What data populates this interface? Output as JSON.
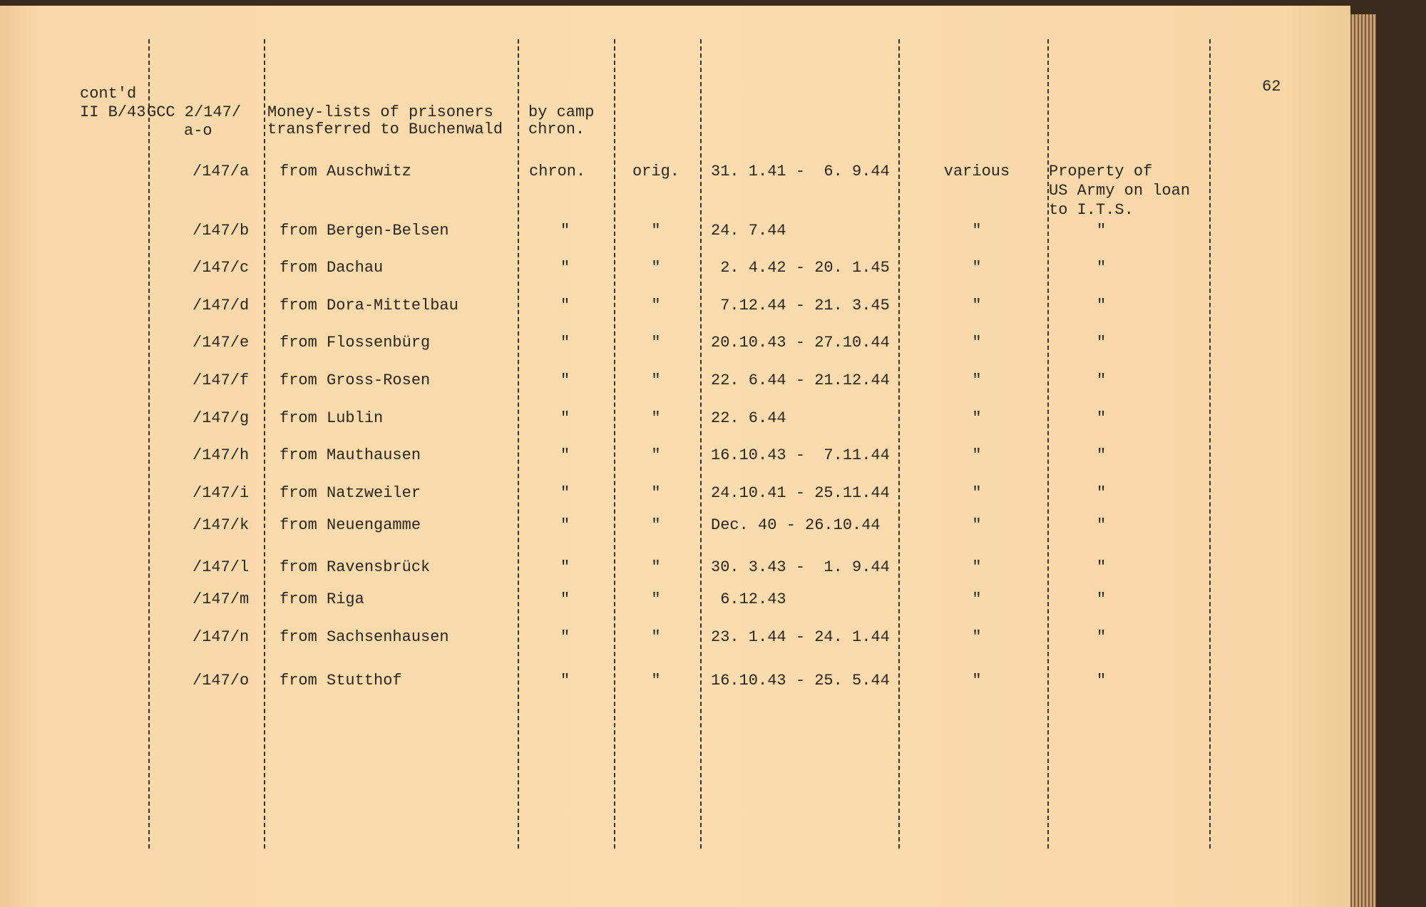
{
  "page_number": "62",
  "header": {
    "contd": "cont'd",
    "ref": "II B/43",
    "number": "GCC 2/147/",
    "number_sub": "a-o",
    "desc_line1": "Money-lists of prisoners",
    "desc_line2": "transferred to Buchenwald",
    "arr_line1": "by camp",
    "arr_line2": "chron."
  },
  "rows": [
    {
      "id": "/147/a",
      "desc": "from Auschwitz",
      "arr": "chron.",
      "orig": "orig.",
      "dates": "31. 1.41 -  6. 9.44",
      "lang": "various",
      "remark": "Property of\nUS Army on loan\nto I.T.S."
    },
    {
      "id": "/147/b",
      "desc": "from Bergen-Belsen",
      "arr": "\"",
      "orig": "\"",
      "dates": "24. 7.44",
      "lang": "\"",
      "remark": "\""
    },
    {
      "id": "/147/c",
      "desc": "from Dachau",
      "arr": "\"",
      "orig": "\"",
      "dates": " 2. 4.42 - 20. 1.45",
      "lang": "\"",
      "remark": "\""
    },
    {
      "id": "/147/d",
      "desc": "from Dora-Mittelbau",
      "arr": "\"",
      "orig": "\"",
      "dates": " 7.12.44 - 21. 3.45",
      "lang": "\"",
      "remark": "\""
    },
    {
      "id": "/147/e",
      "desc": "from Flossenbürg",
      "arr": "\"",
      "orig": "\"",
      "dates": "20.10.43 - 27.10.44",
      "lang": "\"",
      "remark": "\""
    },
    {
      "id": "/147/f",
      "desc": "from Gross-Rosen",
      "arr": "\"",
      "orig": "\"",
      "dates": "22. 6.44 - 21.12.44",
      "lang": "\"",
      "remark": "\""
    },
    {
      "id": "/147/g",
      "desc": "from Lublin",
      "arr": "\"",
      "orig": "\"",
      "dates": "22. 6.44",
      "lang": "\"",
      "remark": "\""
    },
    {
      "id": "/147/h",
      "desc": "from Mauthausen",
      "arr": "\"",
      "orig": "\"",
      "dates": "16.10.43 -  7.11.44",
      "lang": "\"",
      "remark": "\""
    },
    {
      "id": "/147/i",
      "desc": "from Natzweiler",
      "arr": "\"",
      "orig": "\"",
      "dates": "24.10.41 - 25.11.44",
      "lang": "\"",
      "remark": "\""
    },
    {
      "id": "/147/k",
      "desc": "from Neuengamme",
      "arr": "\"",
      "orig": "\"",
      "dates": "Dec. 40 - 26.10.44",
      "lang": "\"",
      "remark": "\""
    },
    {
      "id": "/147/l",
      "desc": "from Ravensbrück",
      "arr": "\"",
      "orig": "\"",
      "dates": "30. 3.43 -  1. 9.44",
      "lang": "\"",
      "remark": "\""
    },
    {
      "id": "/147/m",
      "desc": "from Riga",
      "arr": "\"",
      "orig": "\"",
      "dates": " 6.12.43",
      "lang": "\"",
      "remark": "\""
    },
    {
      "id": "/147/n",
      "desc": "from Sachsenhausen",
      "arr": "\"",
      "orig": "\"",
      "dates": "23. 1.44 - 24. 1.44",
      "lang": "\"",
      "remark": "\""
    },
    {
      "id": "/147/o",
      "desc": "from Stutthof",
      "arr": "\"",
      "orig": "\"",
      "dates": "16.10.43 - 25. 5.44",
      "lang": "\"",
      "remark": "\""
    }
  ]
}
